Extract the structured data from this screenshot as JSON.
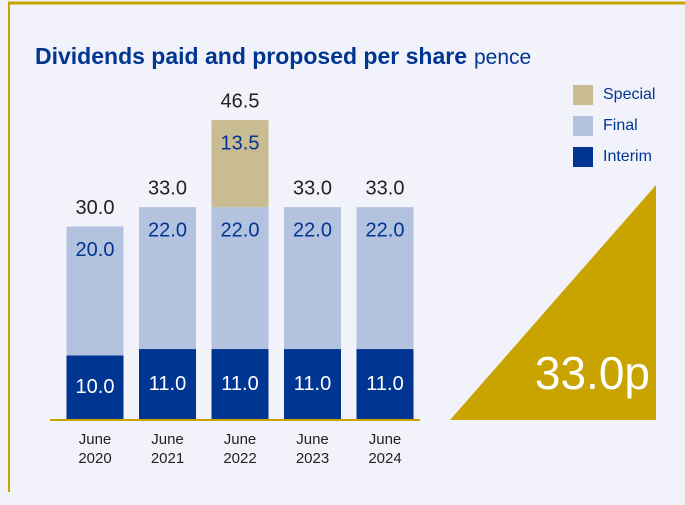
{
  "chart_data": {
    "type": "stacked_bar",
    "title": "Dividends paid and proposed per share",
    "subtitle": "pence",
    "categories": [
      "June 2020",
      "June 2021",
      "June 2022",
      "June 2023",
      "June 2024"
    ],
    "series": [
      {
        "name": "Interim",
        "color": "#003591",
        "values": [
          10,
          11,
          11,
          11,
          11
        ],
        "value_labels": [
          "10.0",
          "11.0",
          "11.0",
          "11.0",
          "11.0"
        ]
      },
      {
        "name": "Final",
        "color": "#b3c2de",
        "values": [
          20,
          22,
          22,
          22,
          22
        ],
        "value_labels": [
          "20.0",
          "22.0",
          "22.0",
          "22.0",
          "22.0"
        ]
      },
      {
        "name": "Special",
        "color": "#c9bc93",
        "values": [
          null,
          null,
          13.5,
          null,
          null
        ],
        "value_labels": [
          null,
          null,
          "13.5",
          null,
          null
        ]
      }
    ],
    "totals": [
      30,
      33,
      46.5,
      33,
      33
    ],
    "totals_labels": [
      "30.0",
      "33.0",
      "46.5",
      "33.0",
      "33.0"
    ],
    "annotation": "33.0p",
    "accent_color": "#c9a400"
  }
}
